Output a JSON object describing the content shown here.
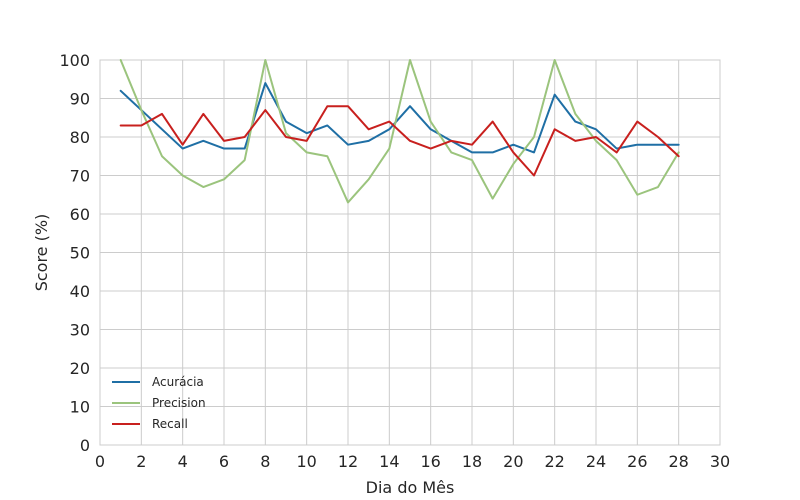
{
  "chart_data": {
    "type": "line",
    "title": "",
    "xlabel": "Dia do Mês",
    "ylabel": "Score (%)",
    "xlim": [
      0,
      30
    ],
    "ylim": [
      0,
      100
    ],
    "xticks": [
      0,
      2,
      4,
      6,
      8,
      10,
      12,
      14,
      16,
      18,
      20,
      22,
      24,
      26,
      28,
      30
    ],
    "yticks": [
      0,
      10,
      20,
      30,
      40,
      50,
      60,
      70,
      80,
      90,
      100
    ],
    "grid": true,
    "legend_position": "lower-left",
    "x": [
      1,
      2,
      3,
      4,
      5,
      6,
      7,
      8,
      9,
      10,
      11,
      12,
      13,
      14,
      15,
      16,
      17,
      18,
      19,
      20,
      21,
      22,
      23,
      24,
      25,
      26,
      27,
      28
    ],
    "series": [
      {
        "name": "Acurácia",
        "color": "#1f6fa5",
        "values": [
          92,
          87,
          82,
          77,
          79,
          77,
          77,
          94,
          84,
          81,
          83,
          78,
          79,
          82,
          88,
          82,
          79,
          76,
          76,
          78,
          76,
          91,
          84,
          82,
          77,
          78,
          78,
          78
        ]
      },
      {
        "name": "Precision",
        "color": "#9bc47d",
        "values": [
          100,
          87,
          75,
          70,
          67,
          69,
          74,
          100,
          81,
          76,
          75,
          63,
          69,
          77,
          100,
          84,
          76,
          74,
          64,
          73,
          80,
          100,
          86,
          79,
          74,
          65,
          67,
          76
        ]
      },
      {
        "name": "Recall",
        "color": "#c8201e",
        "values": [
          83,
          83,
          86,
          78,
          86,
          79,
          80,
          87,
          80,
          79,
          88,
          88,
          82,
          84,
          79,
          77,
          79,
          78,
          84,
          76,
          70,
          82,
          79,
          80,
          76,
          84,
          80,
          75
        ]
      }
    ]
  }
}
